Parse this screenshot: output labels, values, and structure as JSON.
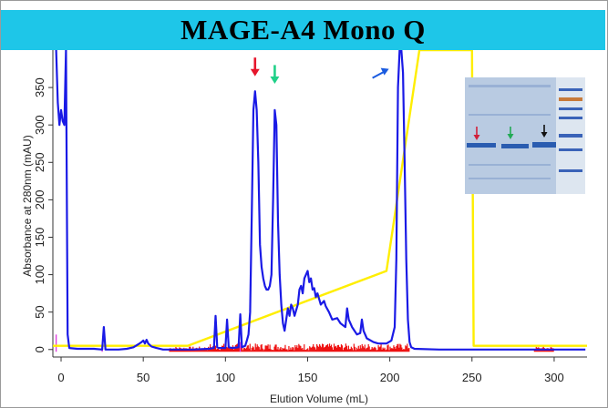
{
  "chart_data": {
    "type": "line",
    "title": "MAGE-A4 Mono Q",
    "xlabel": "Elution Volume (mL)",
    "ylabel": "Absorbance at 280nm (mAU)",
    "xlim": [
      -5,
      320
    ],
    "ylim": [
      -10,
      400
    ],
    "x_ticks": [
      0,
      50,
      100,
      150,
      200,
      250,
      300
    ],
    "y_ticks": [
      0,
      50,
      100,
      150,
      200,
      250,
      300,
      350
    ],
    "grid": false,
    "series": [
      {
        "name": "",
        "color": "#1a1ae6",
        "points": [
          [
            -3,
            400
          ],
          [
            -2,
            330
          ],
          [
            -1,
            300
          ],
          [
            0,
            320
          ],
          [
            1,
            305
          ],
          [
            2,
            300
          ],
          [
            3,
            400
          ],
          [
            4,
            20
          ],
          [
            5,
            2
          ],
          [
            10,
            1
          ],
          [
            20,
            1
          ],
          [
            25,
            0
          ],
          [
            26,
            30
          ],
          [
            27,
            0
          ],
          [
            35,
            0
          ],
          [
            40,
            1
          ],
          [
            44,
            3
          ],
          [
            47,
            7
          ],
          [
            49,
            10
          ],
          [
            50,
            12
          ],
          [
            51,
            8
          ],
          [
            52,
            13
          ],
          [
            53,
            8
          ],
          [
            55,
            4
          ],
          [
            58,
            2
          ],
          [
            62,
            0
          ],
          [
            70,
            0
          ],
          [
            80,
            0
          ],
          [
            90,
            1
          ],
          [
            93,
            2
          ],
          [
            94,
            45
          ],
          [
            95,
            3
          ],
          [
            96,
            2
          ],
          [
            100,
            2
          ],
          [
            101,
            40
          ],
          [
            102,
            3
          ],
          [
            104,
            2
          ],
          [
            108,
            3
          ],
          [
            109,
            47
          ],
          [
            110,
            3
          ],
          [
            112,
            5
          ],
          [
            113,
            12
          ],
          [
            114,
            20
          ],
          [
            115,
            50
          ],
          [
            116,
            180
          ],
          [
            117,
            320
          ],
          [
            118,
            345
          ],
          [
            119,
            320
          ],
          [
            120,
            250
          ],
          [
            121,
            140
          ],
          [
            122,
            110
          ],
          [
            123,
            95
          ],
          [
            124,
            85
          ],
          [
            125,
            80
          ],
          [
            126,
            80
          ],
          [
            127,
            85
          ],
          [
            128,
            100
          ],
          [
            129,
            200
          ],
          [
            130,
            320
          ],
          [
            131,
            300
          ],
          [
            132,
            170
          ],
          [
            133,
            100
          ],
          [
            134,
            60
          ],
          [
            135,
            35
          ],
          [
            136,
            25
          ],
          [
            137,
            40
          ],
          [
            138,
            55
          ],
          [
            139,
            45
          ],
          [
            140,
            60
          ],
          [
            141,
            55
          ],
          [
            142,
            45
          ],
          [
            144,
            60
          ],
          [
            145,
            80
          ],
          [
            146,
            85
          ],
          [
            147,
            75
          ],
          [
            148,
            95
          ],
          [
            149,
            100
          ],
          [
            150,
            105
          ],
          [
            151,
            90
          ],
          [
            152,
            95
          ],
          [
            153,
            80
          ],
          [
            154,
            82
          ],
          [
            155,
            70
          ],
          [
            156,
            75
          ],
          [
            158,
            60
          ],
          [
            160,
            65
          ],
          [
            161,
            58
          ],
          [
            163,
            50
          ],
          [
            165,
            40
          ],
          [
            168,
            42
          ],
          [
            170,
            35
          ],
          [
            173,
            30
          ],
          [
            174,
            55
          ],
          [
            175,
            40
          ],
          [
            177,
            30
          ],
          [
            180,
            20
          ],
          [
            182,
            22
          ],
          [
            183,
            40
          ],
          [
            184,
            25
          ],
          [
            186,
            15
          ],
          [
            190,
            10
          ],
          [
            193,
            8
          ],
          [
            198,
            8
          ],
          [
            201,
            12
          ],
          [
            203,
            30
          ],
          [
            204,
            120
          ],
          [
            205,
            350
          ],
          [
            206,
            400
          ],
          [
            207,
            400
          ],
          [
            208,
            370
          ],
          [
            209,
            250
          ],
          [
            210,
            120
          ],
          [
            211,
            40
          ],
          [
            212,
            10
          ],
          [
            213,
            3
          ],
          [
            215,
            1
          ],
          [
            230,
            0
          ],
          [
            250,
            0
          ],
          [
            280,
            0
          ],
          [
            300,
            0
          ],
          [
            319,
            0
          ]
        ]
      },
      {
        "name": "",
        "color": "#ffee00",
        "points": [
          [
            -5,
            5
          ],
          [
            77,
            5
          ],
          [
            198,
            105
          ],
          [
            218,
            400
          ],
          [
            250,
            400
          ],
          [
            251,
            5
          ],
          [
            320,
            5
          ]
        ]
      }
    ],
    "annotations": [
      {
        "type": "arrow",
        "color": "#e6162c",
        "x": 118,
        "y_top": 390,
        "y_bottom": 365
      },
      {
        "type": "arrow",
        "color": "#20d088",
        "x": 130,
        "y_top": 380,
        "y_bottom": 355
      },
      {
        "type": "arrow",
        "color": "#1a5be0",
        "x": 195,
        "y": 370,
        "direction": "up-right"
      }
    ]
  }
}
